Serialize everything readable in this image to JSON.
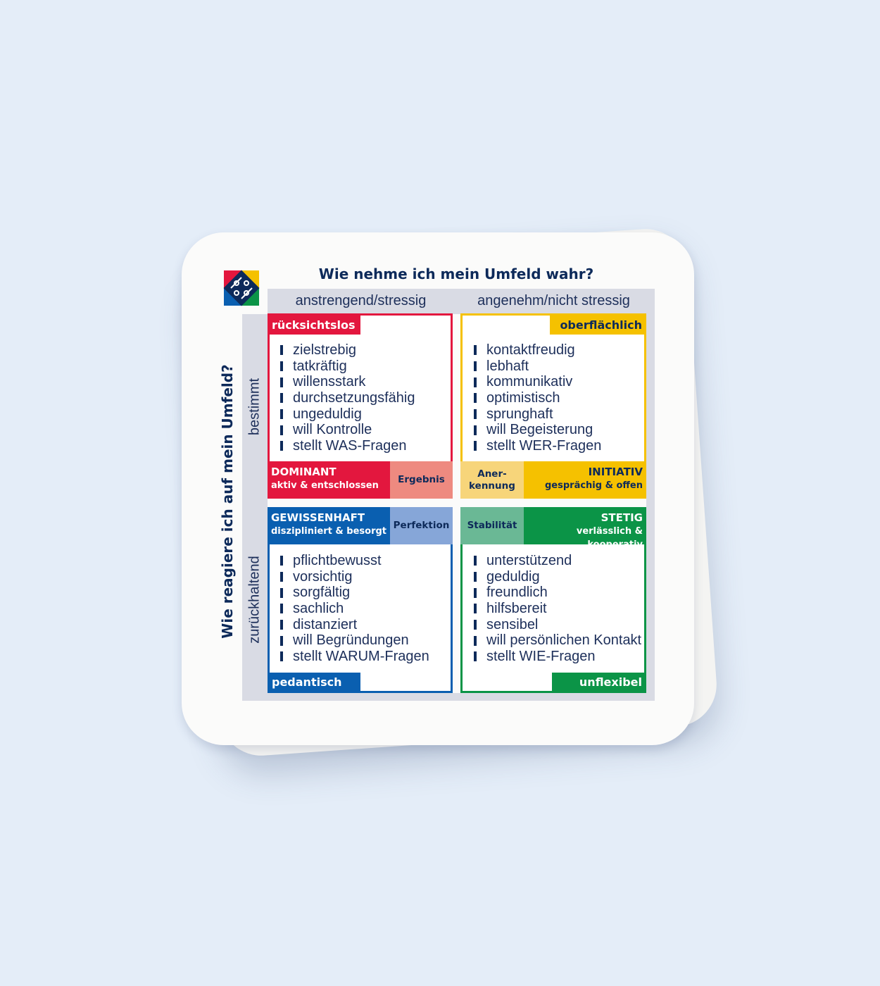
{
  "title": "Wie nehme ich mein Umfeld wahr?",
  "vertical_title": "Wie reagiere ich auf mein Umfeld?",
  "columns": [
    "anstrengend/stressig",
    "angenehm/nicht stressig"
  ],
  "rows": [
    "bestimmt",
    "zurückhaltend"
  ],
  "logo": "diamond-logo",
  "colors": {
    "red": "#e3173e",
    "red_light": "#ee8a80",
    "yellow": "#f5c100",
    "yellow_light": "#f7d57a",
    "blue": "#0a5fb0",
    "blue_light": "#86a6d8",
    "green": "#0b9447",
    "green_light": "#6ab895",
    "navy": "#0d2a5a"
  },
  "quadrants": {
    "dominant": {
      "tag": "rücksichtslos",
      "name": "DOMINANT",
      "subtitle": "aktiv & entschlossen",
      "need": "Ergebnis",
      "traits": [
        "zielstrebig",
        "tatkräftig",
        "willensstark",
        "durchsetzungsfähig",
        "ungeduldig",
        "will Kontrolle",
        "stellt WAS-Fragen"
      ]
    },
    "initiativ": {
      "tag": "oberflächlich",
      "name": "INITIATIV",
      "subtitle": "gesprächig & offen",
      "need_1": "Aner-",
      "need_2": "kennung",
      "traits": [
        "kontaktfreudig",
        "lebhaft",
        "kommunikativ",
        "optimistisch",
        "sprunghaft",
        "will Begeisterung",
        "stellt WER-Fragen"
      ]
    },
    "gewissenhaft": {
      "tag": "pedantisch",
      "name": "GEWISSENHAFT",
      "subtitle": "diszipliniert & besorgt",
      "need": "Perfektion",
      "traits": [
        "pflichtbewusst",
        "vorsichtig",
        "sorgfältig",
        "sachlich",
        "distanziert",
        "will Begründungen",
        "stellt WARUM-Fragen"
      ]
    },
    "stetig": {
      "tag": "unflexibel",
      "name": "STETIG",
      "subtitle": "verlässlich & kooperativ",
      "need": "Stabilität",
      "traits": [
        "unterstützend",
        "geduldig",
        "freundlich",
        "hilfsbereit",
        "sensibel",
        "will persönlichen Kontakt",
        "stellt WIE-Fragen"
      ]
    }
  }
}
